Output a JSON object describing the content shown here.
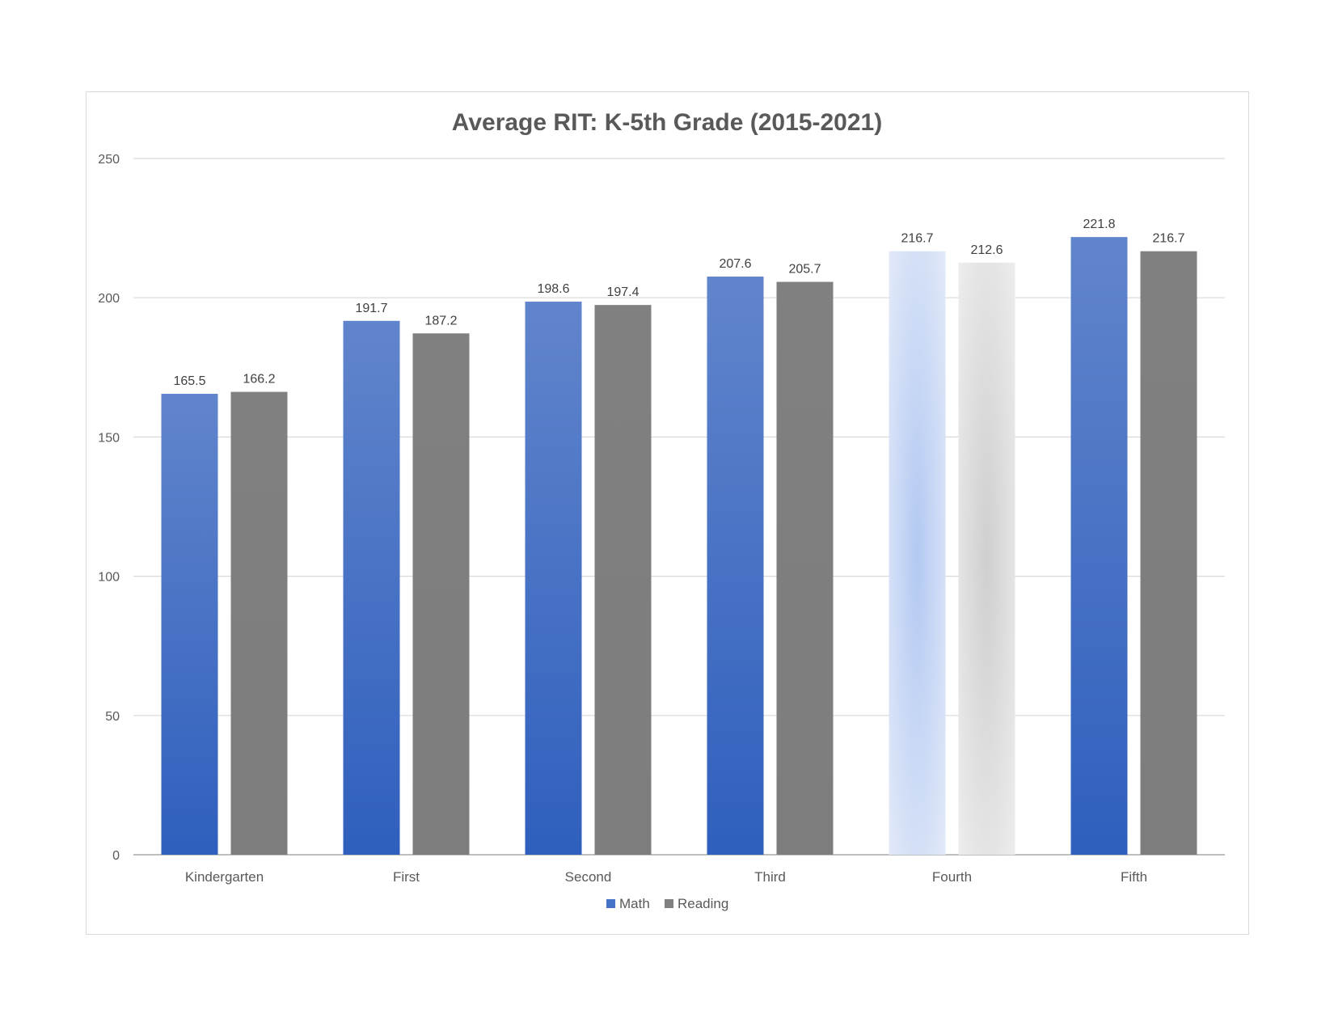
{
  "chart_data": {
    "type": "bar",
    "title": "Average RIT: K-5th Grade (2015-2021)",
    "xlabel": "",
    "ylabel": "",
    "ylim": [
      0,
      250
    ],
    "yticks": [
      0,
      50,
      100,
      150,
      200,
      250
    ],
    "grid": true,
    "legend_position": "bottom",
    "categories": [
      "Kindergarten",
      "First",
      "Second",
      "Third",
      "Fourth",
      "Fifth"
    ],
    "series": [
      {
        "name": "Math",
        "color": "#4472c4",
        "values": [
          165.5,
          191.7,
          198.6,
          207.6,
          216.7,
          221.8
        ],
        "labels": [
          "165.5",
          "191.7",
          "198.6",
          "207.6",
          "216.7",
          "221.8"
        ]
      },
      {
        "name": "Reading",
        "color": "#808080",
        "values": [
          166.2,
          187.2,
          197.4,
          205.7,
          212.6,
          216.7
        ],
        "labels": [
          "166.2",
          "187.2",
          "197.4",
          "205.7",
          "212.6",
          "216.7"
        ]
      }
    ],
    "highlighted_category": "Fourth"
  }
}
